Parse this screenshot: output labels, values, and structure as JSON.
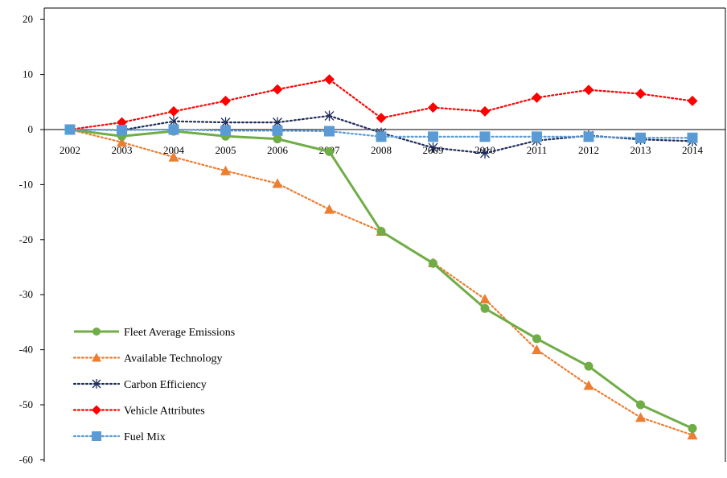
{
  "chart_data": {
    "type": "line",
    "title": "",
    "xlabel": "",
    "ylabel": "",
    "ylim": [
      -60,
      20
    ],
    "yticks": [
      20,
      10,
      0,
      -10,
      -20,
      -30,
      -40,
      -50,
      -60
    ],
    "ytick_labels": [
      "20",
      "10",
      "0",
      "-10",
      "-20",
      "-30",
      "-40",
      "-50",
      "-60"
    ],
    "categories": [
      "2002",
      "2003",
      "2004",
      "2005",
      "2006",
      "2007",
      "2008",
      "2009",
      "2010",
      "2011",
      "2012",
      "2013",
      "2014"
    ],
    "grid": false,
    "legend": "bottom-left, inside plot",
    "series": [
      {
        "name": "Fleet Average Emissions",
        "color": "#70AD47",
        "line_style": "solid",
        "marker": "circle",
        "values": [
          0,
          -1.2,
          -0.3,
          -1.2,
          -1.7,
          -4.0,
          -18.5,
          -24.3,
          -32.5,
          -38.0,
          -43.0,
          -50.0,
          -54.3
        ]
      },
      {
        "name": "Available Technology",
        "color": "#ED7D31",
        "line_style": "dotted",
        "marker": "triangle",
        "values": [
          0,
          -2.3,
          -5.0,
          -7.5,
          -9.8,
          -14.5,
          -18.5,
          -24.2,
          -30.8,
          -40.0,
          -46.5,
          -52.3,
          -55.5
        ]
      },
      {
        "name": "Carbon Efficiency",
        "color": "#1F2D5A",
        "line_style": "dotted",
        "marker": "asterisk",
        "values": [
          0,
          -0.1,
          1.5,
          1.3,
          1.3,
          2.5,
          -0.6,
          -3.3,
          -4.3,
          -2.0,
          -1.1,
          -1.8,
          -2.1
        ]
      },
      {
        "name": "Vehicle Attributes",
        "color": "#FF0000",
        "line_style": "dotted",
        "marker": "diamond",
        "values": [
          0,
          1.3,
          3.3,
          5.2,
          7.3,
          9.1,
          2.1,
          4.0,
          3.3,
          5.8,
          7.2,
          6.5,
          5.2
        ]
      },
      {
        "name": "Fuel Mix",
        "color": "#5B9BD5",
        "line_style": "dotted",
        "marker": "square",
        "values": [
          0,
          -0.1,
          0,
          -0.2,
          -0.2,
          -0.3,
          -1.3,
          -1.3,
          -1.3,
          -1.3,
          -1.3,
          -1.5,
          -1.5
        ]
      }
    ]
  }
}
